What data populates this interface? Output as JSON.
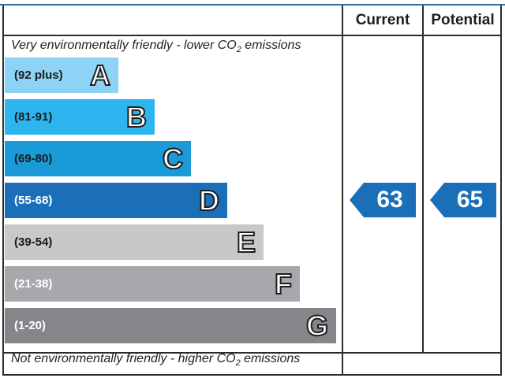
{
  "header": {
    "current_label": "Current",
    "potential_label": "Potential"
  },
  "captions": {
    "top_prefix": "Very environmentally friendly - lower CO",
    "top_sub": "2",
    "top_suffix": " emissions",
    "bottom_prefix": "Not environmentally friendly - higher CO",
    "bottom_sub": "2",
    "bottom_suffix": " emissions"
  },
  "chart_data": {
    "type": "bar",
    "bands": [
      {
        "letter": "A",
        "range": "(92 plus)",
        "min": 92,
        "max": 100,
        "color": "#8dd3f5",
        "text_color": "#1a1a1a"
      },
      {
        "letter": "B",
        "range": "(81-91)",
        "min": 81,
        "max": 91,
        "color": "#2cb5ef",
        "text_color": "#1a1a1a"
      },
      {
        "letter": "C",
        "range": "(69-80)",
        "min": 69,
        "max": 80,
        "color": "#1a9ad6",
        "text_color": "#1a1a1a"
      },
      {
        "letter": "D",
        "range": "(55-68)",
        "min": 55,
        "max": 68,
        "color": "#1a6fb8",
        "text_color": "#ffffff"
      },
      {
        "letter": "E",
        "range": "(39-54)",
        "min": 39,
        "max": 54,
        "color": "#c7c8ca",
        "text_color": "#1a1a1a"
      },
      {
        "letter": "F",
        "range": "(21-38)",
        "min": 21,
        "max": 38,
        "color": "#a6a8ab",
        "text_color": "#ffffff"
      },
      {
        "letter": "G",
        "range": "(1-20)",
        "min": 1,
        "max": 20,
        "color": "#848689",
        "text_color": "#ffffff"
      }
    ],
    "current": {
      "value": 63,
      "label": "63",
      "band": "D",
      "color": "#1a6fb8"
    },
    "potential": {
      "value": 65,
      "label": "65",
      "band": "D",
      "color": "#1a6fb8"
    }
  }
}
